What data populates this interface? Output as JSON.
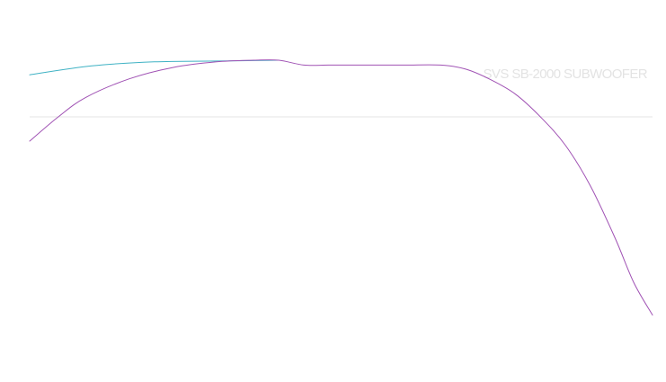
{
  "chart_data": {
    "type": "line",
    "title": "SVS SB-2000 SUBWOOFER",
    "xlabel": "",
    "ylabel": "",
    "xlim": [
      0,
      100
    ],
    "ylim": [
      -30,
      10
    ],
    "reference_line": 0,
    "grid": false,
    "legend": "none",
    "series": [
      {
        "color": "#3fb2c4",
        "x": [
          0,
          10,
          20,
          30,
          40
        ],
        "y": [
          5.2,
          6.3,
          6.8,
          6.9,
          7.0
        ]
      },
      {
        "color": "#a052b4",
        "x": [
          0,
          4.6,
          9,
          16,
          23,
          30,
          36,
          40,
          44,
          48,
          52,
          60,
          66,
          70,
          74,
          78,
          82,
          86,
          90,
          94,
          97,
          100
        ],
        "y": [
          -3.0,
          0.0,
          2.4,
          4.7,
          6.1,
          6.8,
          7.0,
          7.0,
          6.4,
          6.4,
          6.4,
          6.4,
          6.4,
          5.9,
          4.6,
          2.8,
          0.0,
          -3.5,
          -8.5,
          -15.0,
          -20.5,
          -24.5
        ]
      }
    ]
  }
}
